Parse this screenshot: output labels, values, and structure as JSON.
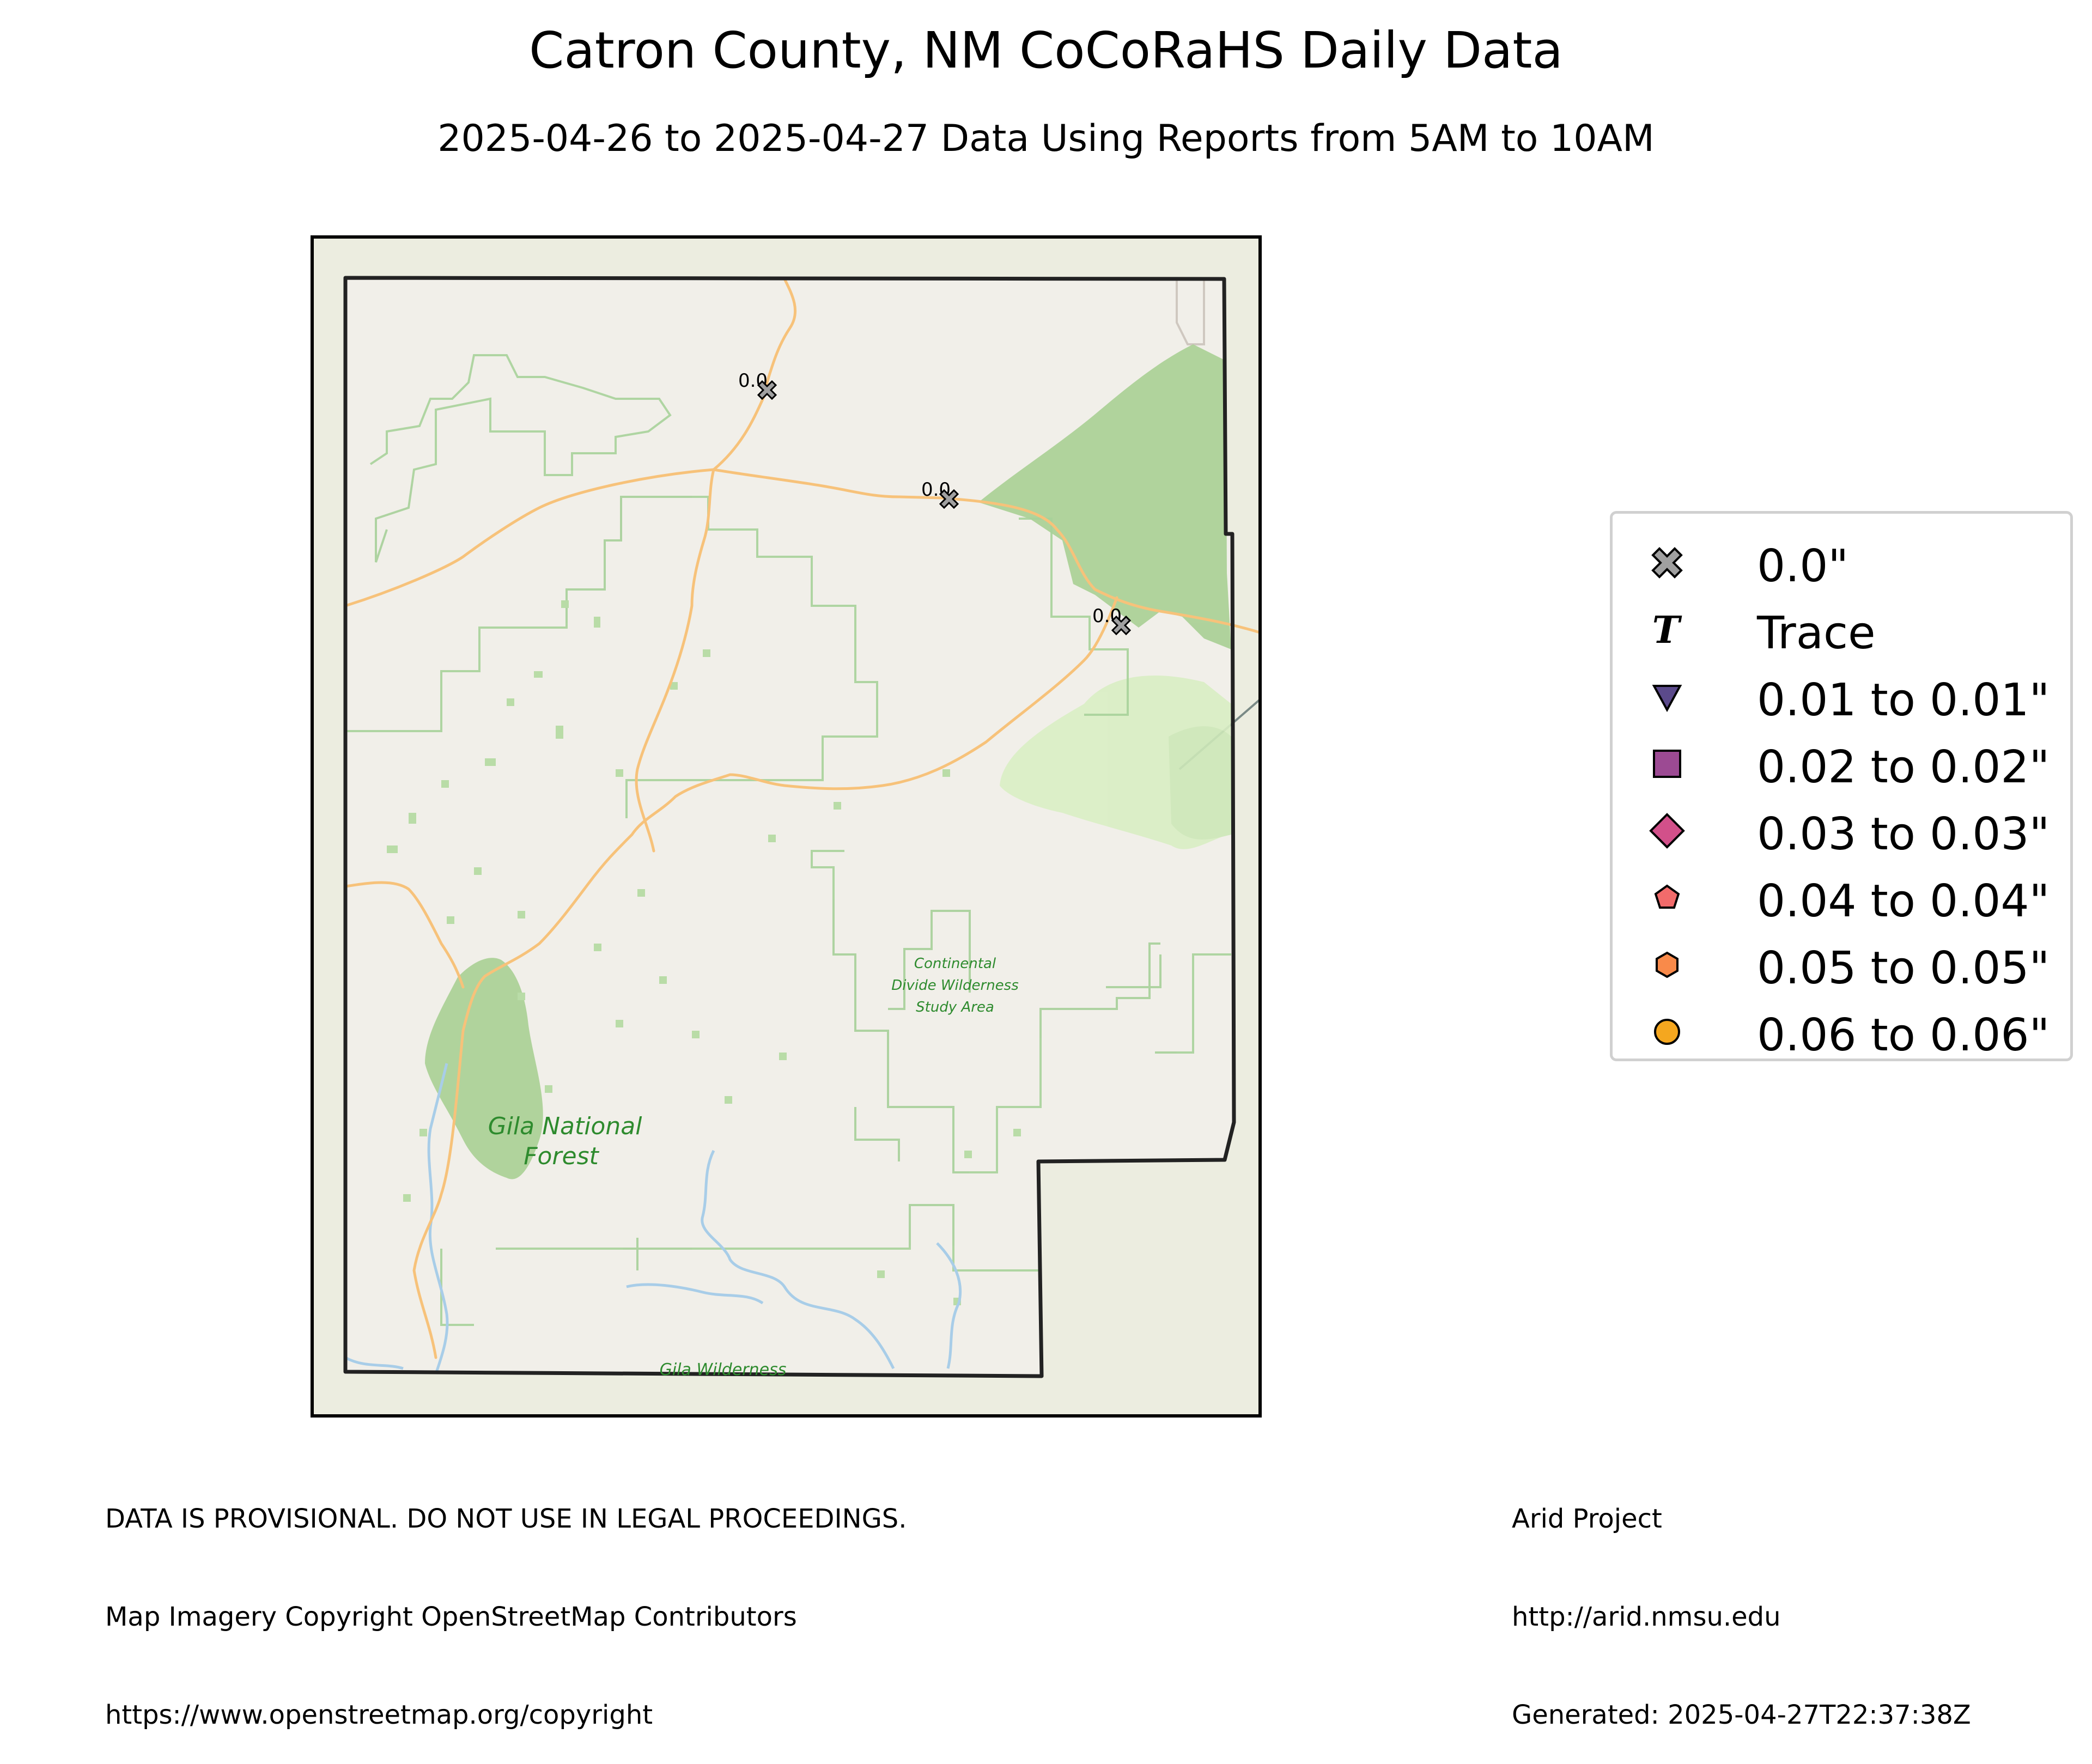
{
  "title": "Catron County, NM CoCoRaHS Daily Data",
  "subtitle": "2025-04-26 to 2025-04-27 Data Using Reports from 5AM to 10AM",
  "map": {
    "labels": {
      "continental": [
        "Continental",
        "Divide Wilderness",
        "Study Area"
      ],
      "gila_forest": [
        "Gila National",
        "Forest"
      ],
      "gila_wilderness": "Gila Wilderness"
    },
    "stations": [
      {
        "value_label": "0.0",
        "category": "0.0\""
      },
      {
        "value_label": "0.0",
        "category": "0.0\""
      },
      {
        "value_label": "0.0",
        "category": "0.0\""
      }
    ],
    "colors": {
      "land": "#f1efe9",
      "outer_land": "#ecede0",
      "forest": "#a8d09a",
      "road": "#f7c27a",
      "water": "#a8cde8",
      "county_border": "#222222"
    }
  },
  "legend": [
    {
      "label": "0.0\"",
      "marker": "x",
      "color": "#a0a0a0"
    },
    {
      "label": "Trace",
      "marker": "T",
      "color": "#000000"
    },
    {
      "label": "0.01 to 0.01\"",
      "marker": "triangle-down",
      "color": "#5b4a8b"
    },
    {
      "label": "0.02 to 0.02\"",
      "marker": "square",
      "color": "#9c4a93"
    },
    {
      "label": "0.03 to 0.03\"",
      "marker": "diamond",
      "color": "#d2508a"
    },
    {
      "label": "0.04 to 0.04\"",
      "marker": "pentagon",
      "color": "#f26b6b"
    },
    {
      "label": "0.05 to 0.05\"",
      "marker": "hexagon",
      "color": "#f98a4a"
    },
    {
      "label": "0.06 to 0.06\"",
      "marker": "circle",
      "color": "#f5a71f"
    }
  ],
  "footer": {
    "left": [
      "DATA IS PROVISIONAL. DO NOT USE IN LEGAL PROCEEDINGS.",
      "Map Imagery Copyright OpenStreetMap Contributors",
      "https://www.openstreetmap.org/copyright"
    ],
    "right": [
      "Arid Project",
      "http://arid.nmsu.edu",
      "Generated: 2025-04-27T22:37:38Z"
    ]
  }
}
